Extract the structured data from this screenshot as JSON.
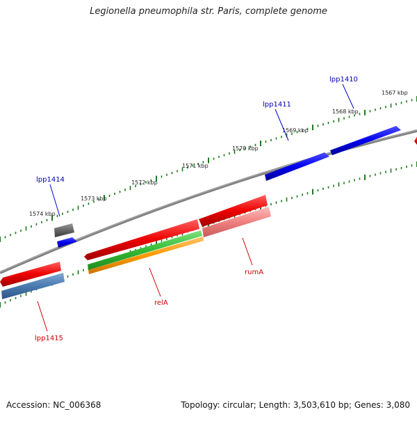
{
  "title": "Legionella pneumophila str. Paris, complete genome",
  "footer": {
    "accession": "Accession: NC_006368",
    "summary": "Topology: circular; Length: 3,503,610 bp; Genes: 3,080"
  },
  "colors": {
    "backbone": "#808080",
    "tick": "#1a7a1a",
    "forward_gene": "#0000ee",
    "reverse_gene": "#ee0000",
    "grey_feature": "#666666",
    "pink_feature": "#f08080",
    "steel_feature": "#4a7ab0",
    "green_feature": "#33bb33",
    "orange_feature": "#ff9900",
    "blue_label": "#0000aa",
    "red_label": "#cc0000"
  },
  "scale_labels": [
    "1567 kbp",
    "1568 kbp",
    "1569 kbp",
    "1570 kbp",
    "1571 kbp",
    "1572 kbp",
    "1573 kbp",
    "1574 kbp"
  ],
  "gene_labels": {
    "forward": [
      "lpp1410",
      "lpp1411",
      "lpp1414"
    ],
    "reverse": [
      "rumA",
      "relA",
      "lpp1415"
    ]
  }
}
